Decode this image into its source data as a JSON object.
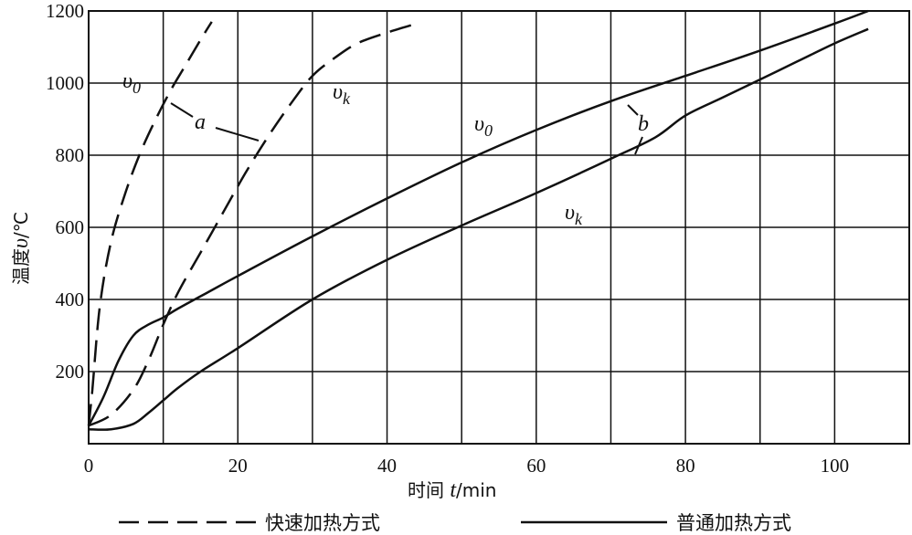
{
  "chart_data": {
    "type": "line",
    "xlabel": {
      "main": "时间 ",
      "var": "t",
      "unit": "/min"
    },
    "ylabel": {
      "main": "温度",
      "var": "υ",
      "unit": "/℃"
    },
    "xlim": [
      0,
      110
    ],
    "ylim": [
      0,
      1200
    ],
    "xticks": [
      0,
      20,
      40,
      60,
      80,
      100
    ],
    "yticks": [
      200,
      400,
      600,
      800,
      1000,
      1200
    ],
    "x_gridlines": [
      0,
      10,
      20,
      30,
      40,
      50,
      60,
      70,
      80,
      90,
      100,
      110
    ],
    "y_gridlines": [
      200,
      400,
      600,
      800,
      1000,
      1200
    ],
    "grid": true,
    "series": [
      {
        "name": "快速加热方式",
        "style": "dashed",
        "group": "a",
        "curve": "v0",
        "x": [
          0,
          0.5,
          1.5,
          3,
          5,
          7,
          9,
          11,
          13,
          15,
          16.5
        ],
        "y": [
          50,
          150,
          380,
          560,
          700,
          810,
          900,
          980,
          1050,
          1120,
          1170
        ]
      },
      {
        "name": "快速加热方式",
        "style": "dashed",
        "group": "a",
        "curve": "vk",
        "x": [
          0,
          3,
          6,
          8,
          10,
          12,
          15,
          18,
          21,
          24,
          27,
          30,
          33,
          36,
          40,
          44
        ],
        "y": [
          50,
          80,
          150,
          230,
          330,
          420,
          530,
          640,
          750,
          850,
          940,
          1020,
          1070,
          1110,
          1140,
          1165
        ]
      },
      {
        "name": "普通加热方式",
        "style": "solid",
        "group": "b",
        "curve": "v0",
        "x": [
          0,
          2,
          4,
          6,
          8,
          10,
          12,
          16,
          20,
          30,
          40,
          50,
          60,
          70,
          80,
          90,
          100,
          104.5
        ],
        "y": [
          50,
          130,
          230,
          300,
          330,
          350,
          375,
          420,
          465,
          575,
          680,
          780,
          870,
          950,
          1020,
          1090,
          1165,
          1200
        ]
      },
      {
        "name": "普通加热方式",
        "style": "solid",
        "group": "b",
        "curve": "vk",
        "x": [
          0,
          3,
          6,
          8,
          10,
          12,
          15,
          20,
          30,
          40,
          50,
          60,
          70,
          76,
          80,
          85,
          90,
          95,
          100,
          104.5
        ],
        "y": [
          40,
          40,
          55,
          85,
          120,
          155,
          200,
          265,
          400,
          510,
          605,
          695,
          790,
          850,
          910,
          960,
          1010,
          1060,
          1110,
          1150
        ]
      }
    ],
    "annotations": {
      "a_label": "a",
      "b_label": "b",
      "v0_top_left": {
        "base": "υ",
        "sub": "0"
      },
      "vk_top": {
        "base": "υ",
        "sub": "k"
      },
      "v0_middle": {
        "base": "υ",
        "sub": "0"
      },
      "vk_lower": {
        "base": "υ",
        "sub": "k"
      }
    },
    "legend": {
      "placement": "bottom",
      "items": [
        {
          "label": "快速加热方式",
          "style": "dashed"
        },
        {
          "label": "普通加热方式",
          "style": "solid"
        }
      ]
    }
  }
}
